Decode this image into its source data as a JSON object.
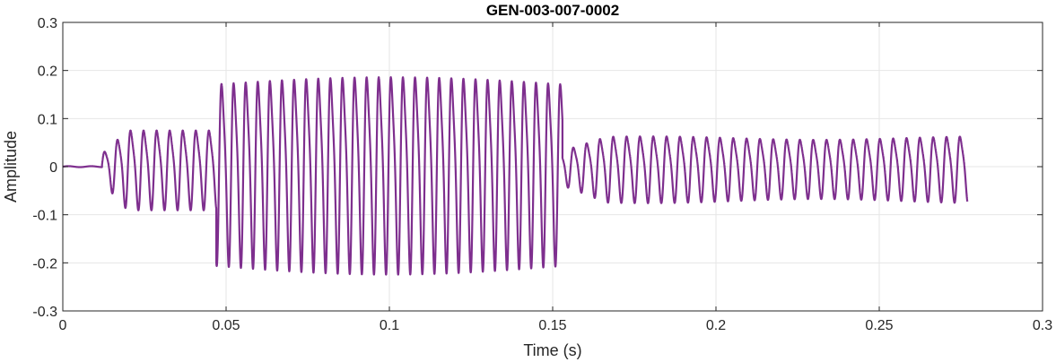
{
  "chart_data": {
    "type": "line",
    "title": "GEN-003-007-0002",
    "xlabel": "Time (s)",
    "ylabel": "Amplitude",
    "xlim": [
      0,
      0.3
    ],
    "ylim": [
      -0.3,
      0.3
    ],
    "xticks": [
      0,
      0.05,
      0.1,
      0.15,
      0.2,
      0.25,
      0.3
    ],
    "xtick_labels": [
      "0",
      "0.05",
      "0.1",
      "0.15",
      "0.2",
      "0.25",
      "0.3"
    ],
    "yticks": [
      -0.3,
      -0.2,
      -0.1,
      0,
      0.1,
      0.2,
      0.3
    ],
    "ytick_labels": [
      "-0.3",
      "-0.2",
      "-0.1",
      "0",
      "0.1",
      "0.2",
      "0.3"
    ],
    "grid": true,
    "line_color": "#7E2F8E",
    "signal_duration": 0.277,
    "segments": [
      {
        "t_start": 0.0,
        "t_end": 0.012,
        "amplitude": 0.002,
        "frequency_hz": 0
      },
      {
        "t_start": 0.012,
        "t_end": 0.047,
        "amplitude": 0.095,
        "frequency_hz": 250
      },
      {
        "t_start": 0.047,
        "t_end": 0.153,
        "amplitude": 0.235,
        "frequency_hz": 270
      },
      {
        "t_start": 0.153,
        "t_end": 0.277,
        "amplitude": 0.075,
        "frequency_hz": 245
      }
    ]
  }
}
